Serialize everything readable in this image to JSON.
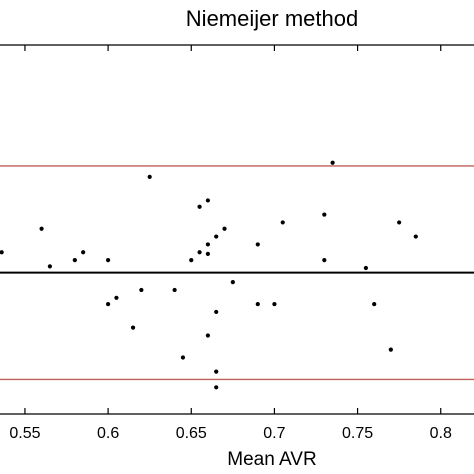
{
  "chart_data": {
    "type": "scatter",
    "title": "Niemeijer method",
    "xlabel": "Mean AVR",
    "ylabel": "",
    "xlim": [
      0.535,
      0.82
    ],
    "ylim": [
      -0.09,
      0.145
    ],
    "x_ticks": [
      "0.55",
      "0.6",
      "0.65",
      "0.7",
      "0.75",
      "0.8"
    ],
    "x_tick_values": [
      0.55,
      0.6,
      0.65,
      0.7,
      0.75,
      0.8
    ],
    "grid": false,
    "mean_line": 0,
    "limit_lines": [
      0.068,
      -0.068
    ],
    "colors": {
      "points": "#000000",
      "mean_line": "#000000",
      "limit_lines": "#c0605a",
      "axes": "#000000"
    },
    "points": [
      {
        "x": 0.536,
        "y": 0.013
      },
      {
        "x": 0.56,
        "y": 0.028
      },
      {
        "x": 0.565,
        "y": 0.004
      },
      {
        "x": 0.58,
        "y": 0.008
      },
      {
        "x": 0.585,
        "y": 0.013
      },
      {
        "x": 0.6,
        "y": 0.008
      },
      {
        "x": 0.6,
        "y": -0.02
      },
      {
        "x": 0.605,
        "y": -0.016
      },
      {
        "x": 0.615,
        "y": -0.035
      },
      {
        "x": 0.62,
        "y": -0.011
      },
      {
        "x": 0.625,
        "y": 0.061
      },
      {
        "x": 0.64,
        "y": -0.011
      },
      {
        "x": 0.645,
        "y": -0.054
      },
      {
        "x": 0.65,
        "y": 0.008
      },
      {
        "x": 0.655,
        "y": 0.042
      },
      {
        "x": 0.655,
        "y": 0.013
      },
      {
        "x": 0.66,
        "y": 0.046
      },
      {
        "x": 0.66,
        "y": 0.018
      },
      {
        "x": 0.66,
        "y": 0.012
      },
      {
        "x": 0.66,
        "y": -0.04
      },
      {
        "x": 0.665,
        "y": 0.023
      },
      {
        "x": 0.665,
        "y": -0.025
      },
      {
        "x": 0.665,
        "y": -0.063
      },
      {
        "x": 0.665,
        "y": -0.073
      },
      {
        "x": 0.67,
        "y": 0.028
      },
      {
        "x": 0.675,
        "y": -0.006
      },
      {
        "x": 0.69,
        "y": 0.018
      },
      {
        "x": 0.69,
        "y": -0.02
      },
      {
        "x": 0.7,
        "y": -0.02
      },
      {
        "x": 0.705,
        "y": 0.032
      },
      {
        "x": 0.73,
        "y": 0.037
      },
      {
        "x": 0.73,
        "y": 0.008
      },
      {
        "x": 0.735,
        "y": 0.07
      },
      {
        "x": 0.755,
        "y": 0.003
      },
      {
        "x": 0.76,
        "y": -0.02
      },
      {
        "x": 0.77,
        "y": -0.049
      },
      {
        "x": 0.775,
        "y": 0.032
      },
      {
        "x": 0.785,
        "y": 0.023
      }
    ]
  }
}
